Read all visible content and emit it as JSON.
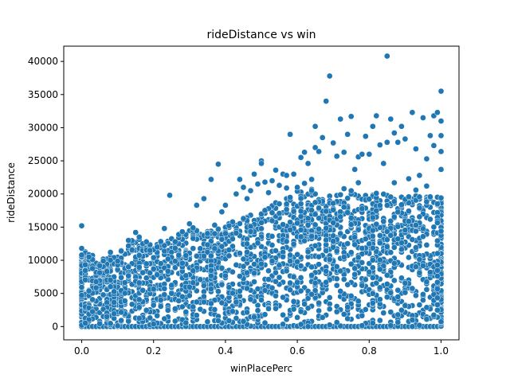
{
  "chart_data": {
    "type": "scatter",
    "title": "rideDistance vs win",
    "xlabel": "winPlacePerc",
    "ylabel": "rideDistance",
    "xlim": [
      -0.05,
      1.05
    ],
    "ylim": [
      -2000,
      42300
    ],
    "xticks": [
      {
        "value": 0.0,
        "label": "0.0"
      },
      {
        "value": 0.2,
        "label": "0.2"
      },
      {
        "value": 0.4,
        "label": "0.4"
      },
      {
        "value": 0.6,
        "label": "0.6"
      },
      {
        "value": 0.8,
        "label": "0.8"
      },
      {
        "value": 1.0,
        "label": "1.0"
      }
    ],
    "yticks": [
      {
        "value": 0,
        "label": "0"
      },
      {
        "value": 5000,
        "label": "5000"
      },
      {
        "value": 10000,
        "label": "10000"
      },
      {
        "value": 15000,
        "label": "15000"
      },
      {
        "value": 20000,
        "label": "20000"
      },
      {
        "value": 25000,
        "label": "25000"
      },
      {
        "value": 30000,
        "label": "30000"
      },
      {
        "value": 35000,
        "label": "35000"
      },
      {
        "value": 40000,
        "label": "40000"
      }
    ],
    "grid": false,
    "marker_color": "#1f77b4",
    "marker_edge_color": "#ffffff",
    "envelope": [
      [
        0.0,
        12000
      ],
      [
        0.05,
        10000
      ],
      [
        0.1,
        11000
      ],
      [
        0.15,
        13500
      ],
      [
        0.2,
        12500
      ],
      [
        0.25,
        13500
      ],
      [
        0.3,
        14500
      ],
      [
        0.35,
        14500
      ],
      [
        0.4,
        15500
      ],
      [
        0.45,
        16500
      ],
      [
        0.5,
        17500
      ],
      [
        0.55,
        19000
      ],
      [
        0.6,
        20500
      ],
      [
        0.65,
        21000
      ],
      [
        0.7,
        20000
      ],
      [
        0.75,
        20500
      ],
      [
        0.8,
        20000
      ],
      [
        0.85,
        20000
      ],
      [
        0.9,
        19500
      ],
      [
        0.95,
        20000
      ],
      [
        1.0,
        19500
      ]
    ],
    "points": [
      [
        0.0,
        15200
      ],
      [
        0.0,
        11800
      ],
      [
        0.0,
        10800
      ],
      [
        0.06,
        9900
      ],
      [
        0.08,
        11200
      ],
      [
        0.11,
        11400
      ],
      [
        0.13,
        13000
      ],
      [
        0.15,
        14200
      ],
      [
        0.16,
        13500
      ],
      [
        0.19,
        11500
      ],
      [
        0.21,
        12000
      ],
      [
        0.23,
        14800
      ],
      [
        0.245,
        19800
      ],
      [
        0.26,
        12800
      ],
      [
        0.28,
        14300
      ],
      [
        0.3,
        15500
      ],
      [
        0.31,
        14900
      ],
      [
        0.32,
        18300
      ],
      [
        0.34,
        19300
      ],
      [
        0.36,
        22200
      ],
      [
        0.37,
        15300
      ],
      [
        0.38,
        24500
      ],
      [
        0.39,
        17300
      ],
      [
        0.4,
        18300
      ],
      [
        0.41,
        15200
      ],
      [
        0.43,
        20000
      ],
      [
        0.44,
        22200
      ],
      [
        0.45,
        21000
      ],
      [
        0.46,
        19300
      ],
      [
        0.47,
        20500
      ],
      [
        0.48,
        23000
      ],
      [
        0.49,
        21500
      ],
      [
        0.5,
        25000
      ],
      [
        0.5,
        24600
      ],
      [
        0.51,
        21800
      ],
      [
        0.52,
        20200
      ],
      [
        0.53,
        22000
      ],
      [
        0.54,
        23600
      ],
      [
        0.55,
        21300
      ],
      [
        0.56,
        23000
      ],
      [
        0.57,
        22800
      ],
      [
        0.58,
        29000
      ],
      [
        0.59,
        23000
      ],
      [
        0.6,
        21000
      ],
      [
        0.61,
        25500
      ],
      [
        0.62,
        26300
      ],
      [
        0.63,
        24600
      ],
      [
        0.64,
        22200
      ],
      [
        0.65,
        27000
      ],
      [
        0.65,
        30200
      ],
      [
        0.66,
        26400
      ],
      [
        0.67,
        28500
      ],
      [
        0.68,
        34000
      ],
      [
        0.69,
        37800
      ],
      [
        0.7,
        27700
      ],
      [
        0.71,
        25700
      ],
      [
        0.72,
        31300
      ],
      [
        0.73,
        26300
      ],
      [
        0.74,
        29000
      ],
      [
        0.75,
        31700
      ],
      [
        0.76,
        23700
      ],
      [
        0.77,
        25600
      ],
      [
        0.78,
        26000
      ],
      [
        0.79,
        28700
      ],
      [
        0.8,
        26000
      ],
      [
        0.81,
        30200
      ],
      [
        0.82,
        31800
      ],
      [
        0.83,
        27400
      ],
      [
        0.84,
        24600
      ],
      [
        0.85,
        40800
      ],
      [
        0.85,
        27800
      ],
      [
        0.86,
        31300
      ],
      [
        0.87,
        29200
      ],
      [
        0.88,
        27800
      ],
      [
        0.89,
        30200
      ],
      [
        0.9,
        28300
      ],
      [
        0.91,
        22300
      ],
      [
        0.92,
        32300
      ],
      [
        0.93,
        26800
      ],
      [
        0.94,
        22800
      ],
      [
        0.95,
        31500
      ],
      [
        0.96,
        25300
      ],
      [
        0.97,
        28800
      ],
      [
        0.98,
        31800
      ],
      [
        0.98,
        27300
      ],
      [
        0.99,
        32300
      ],
      [
        1.0,
        35500
      ],
      [
        1.0,
        31000
      ],
      [
        1.0,
        28800
      ],
      [
        1.0,
        26400
      ],
      [
        1.0,
        23700
      ],
      [
        0.73,
        20800
      ],
      [
        0.77,
        21700
      ],
      [
        0.82,
        20100
      ],
      [
        0.87,
        21700
      ],
      [
        0.93,
        20600
      ],
      [
        0.96,
        21200
      ],
      [
        0.62,
        21600
      ],
      [
        0.57,
        20900
      ]
    ]
  }
}
